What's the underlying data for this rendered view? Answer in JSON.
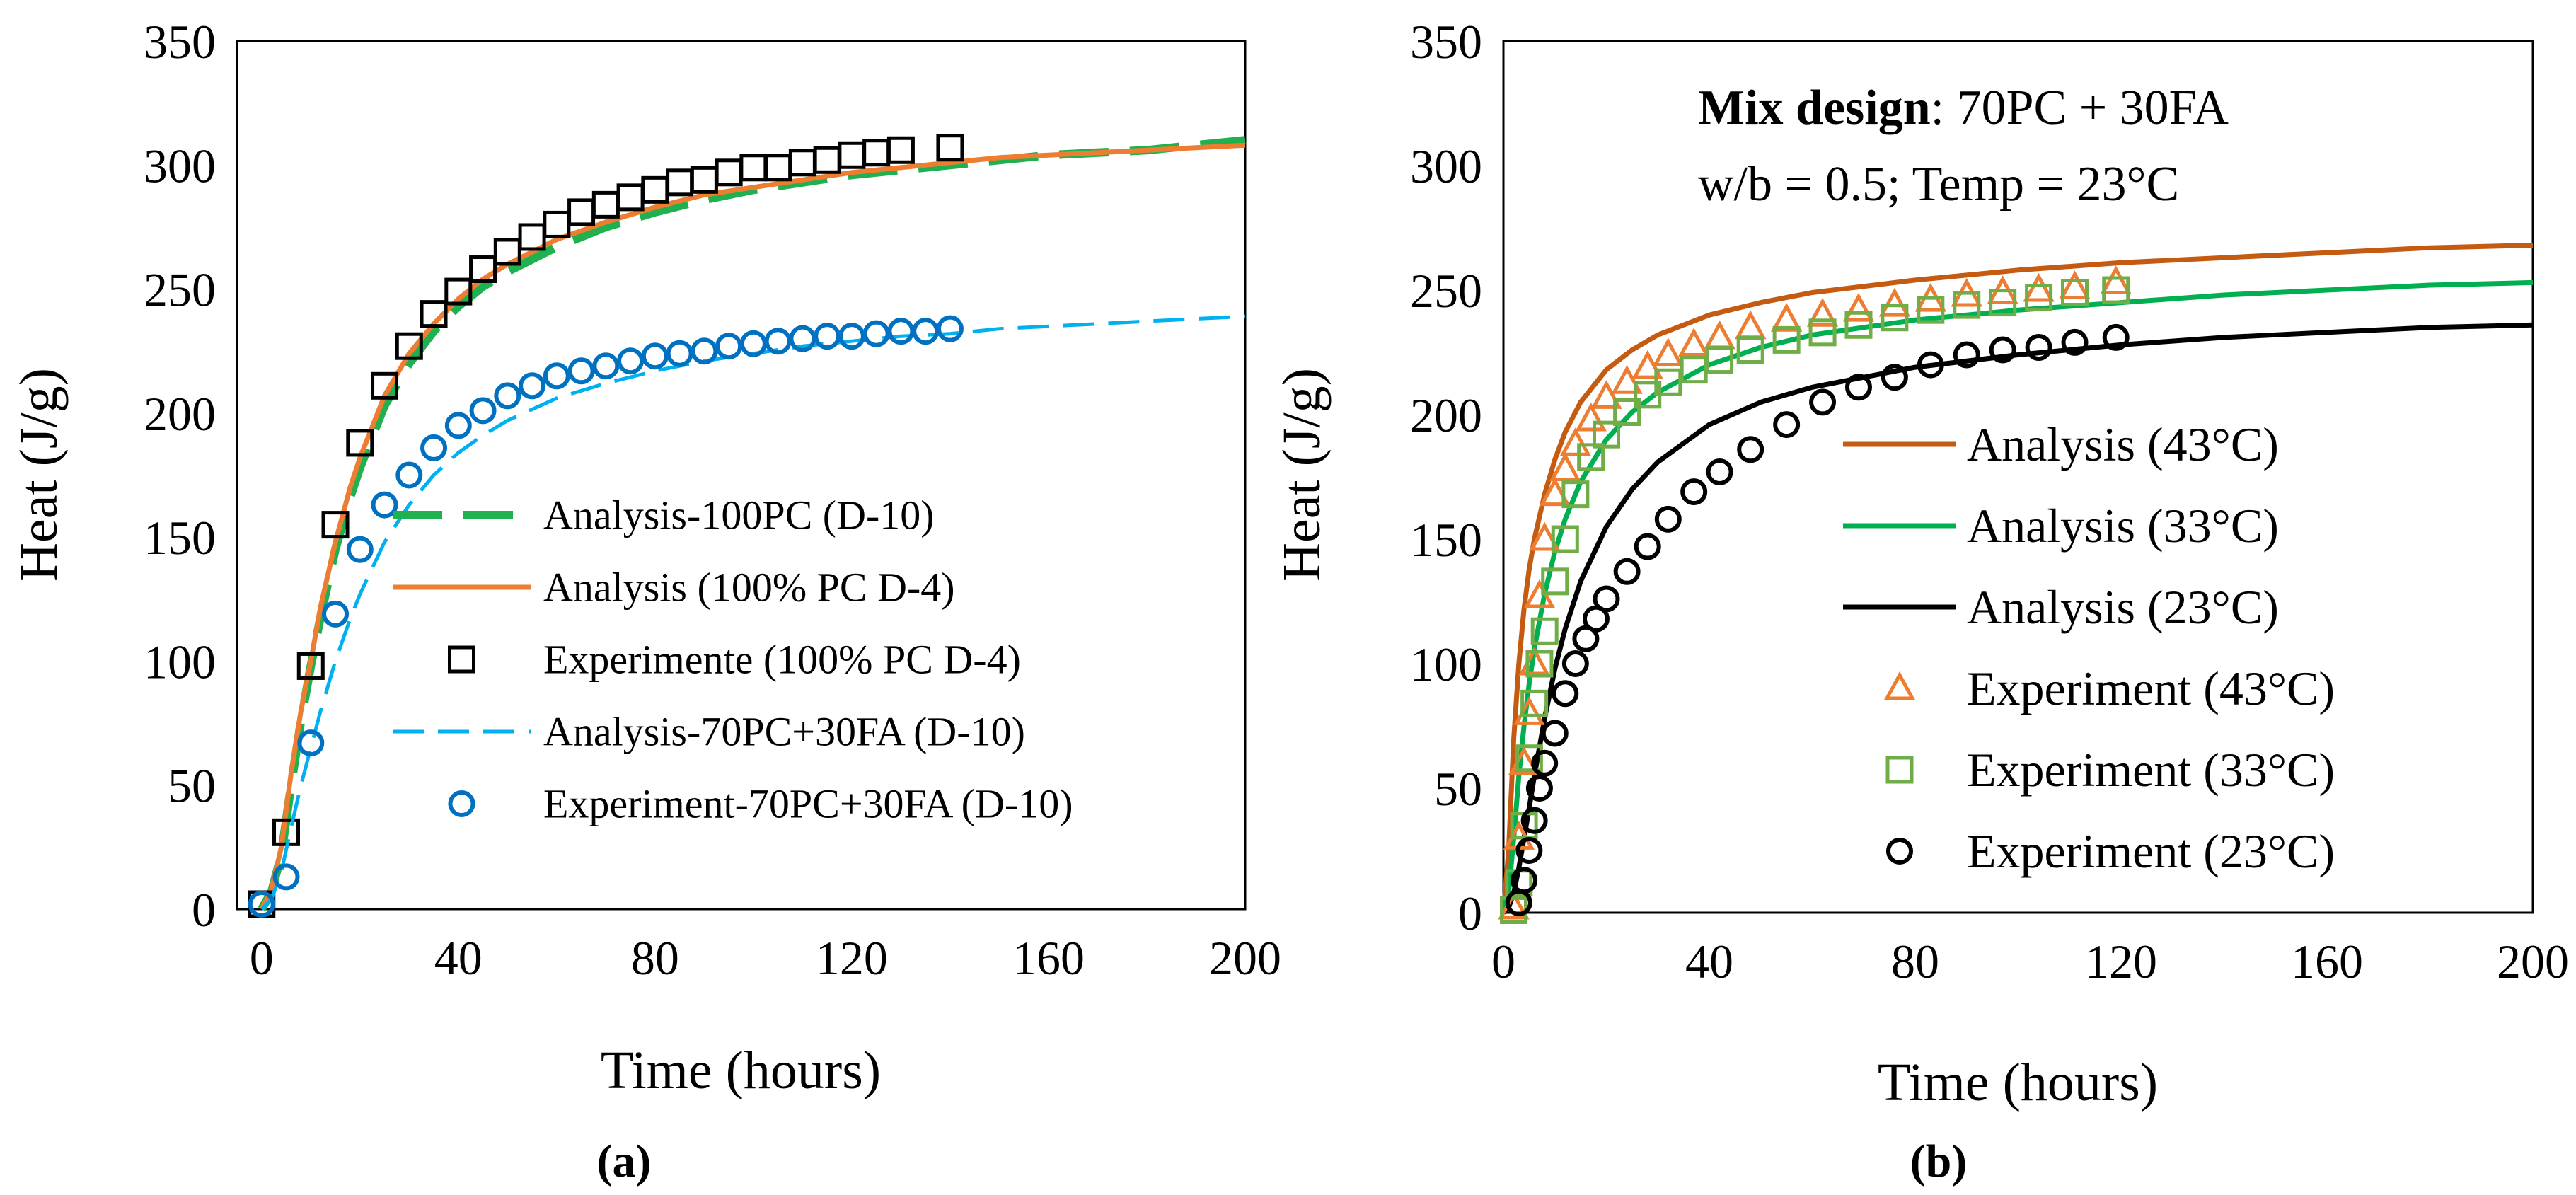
{
  "chart_data": [
    {
      "type": "line",
      "panel_label": "(a)",
      "title": "",
      "xlabel": "Time (hours)",
      "ylabel": "Heat (J/g)",
      "xlim": [
        -5,
        200
      ],
      "ylim": [
        0,
        350
      ],
      "xticks": [
        0,
        40,
        80,
        120,
        160,
        200
      ],
      "yticks": [
        0,
        50,
        100,
        150,
        200,
        250,
        300,
        350
      ],
      "grid": false,
      "legend_position": "lower-right",
      "series": [
        {
          "name": "Analysis-100PC (D-10)",
          "kind": "line",
          "style": "long-dash",
          "color": "#1fb150",
          "x": [
            0,
            2,
            4,
            6,
            8,
            10,
            12,
            15,
            18,
            20,
            25,
            30,
            35,
            40,
            45,
            50,
            60,
            70,
            80,
            90,
            100,
            110,
            120,
            130,
            140,
            150,
            160,
            170,
            180,
            190,
            200
          ],
          "y": [
            0,
            7,
            22,
            50,
            76,
            98,
            118,
            145,
            166,
            178,
            203,
            220,
            233,
            243,
            251,
            257,
            267,
            275,
            281,
            286,
            290,
            293,
            296,
            298,
            300,
            302,
            304,
            305,
            306,
            308,
            310
          ]
        },
        {
          "name": "Analysis (100% PC D-4)",
          "kind": "line",
          "style": "solid",
          "color": "#ed7d31",
          "x": [
            0,
            2,
            4,
            6,
            8,
            10,
            12,
            15,
            18,
            20,
            25,
            30,
            35,
            40,
            45,
            50,
            60,
            70,
            80,
            90,
            100,
            110,
            120,
            130,
            140,
            150,
            160,
            170,
            180,
            190,
            200
          ],
          "y": [
            0,
            8,
            25,
            55,
            80,
            100,
            122,
            148,
            170,
            182,
            207,
            224,
            236,
            246,
            254,
            260,
            270,
            277,
            283,
            288,
            291,
            294,
            297,
            299,
            301,
            303,
            304,
            305,
            306,
            307,
            308
          ]
        },
        {
          "name": "Experimente (100% PC D-4)",
          "kind": "marker",
          "marker": "square",
          "color": "#000000",
          "x": [
            0,
            5,
            10,
            15,
            20,
            25,
            30,
            35,
            40,
            45,
            50,
            55,
            60,
            65,
            70,
            75,
            80,
            85,
            90,
            95,
            100,
            105,
            110,
            115,
            120,
            125,
            130,
            140
          ],
          "y": [
            2,
            31,
            98,
            155,
            188,
            211,
            227,
            240,
            249,
            258,
            265,
            271,
            276,
            281,
            284,
            287,
            290,
            293,
            294,
            297,
            299,
            299,
            301,
            302,
            304,
            305,
            306,
            307
          ]
        },
        {
          "name": "Analysis-70PC+30FA (D-10)",
          "kind": "line",
          "style": "dash",
          "color": "#00b0f0",
          "x": [
            0,
            2,
            4,
            6,
            8,
            10,
            12,
            15,
            18,
            20,
            25,
            30,
            35,
            40,
            45,
            50,
            60,
            70,
            80,
            90,
            100,
            110,
            120,
            130,
            140,
            150,
            160,
            170,
            180,
            190,
            200
          ],
          "y": [
            0,
            4,
            15,
            33,
            50,
            65,
            80,
            100,
            117,
            127,
            148,
            163,
            175,
            184,
            191,
            197,
            206,
            212,
            217,
            221,
            224,
            227,
            229,
            231,
            232,
            234,
            235,
            236,
            237,
            238,
            239
          ]
        },
        {
          "name": "Experiment-70PC+30FA (D-10)",
          "kind": "marker",
          "marker": "circle",
          "color": "#0070c0",
          "x": [
            0,
            5,
            10,
            15,
            20,
            25,
            30,
            35,
            40,
            45,
            50,
            55,
            60,
            65,
            70,
            75,
            80,
            85,
            90,
            95,
            100,
            105,
            110,
            115,
            120,
            125,
            130,
            135,
            140
          ],
          "y": [
            2,
            13,
            67,
            119,
            145,
            163,
            175,
            186,
            195,
            201,
            207,
            211,
            215,
            217,
            219,
            221,
            223,
            224,
            225,
            227,
            228,
            229,
            230,
            231,
            231,
            232,
            233,
            233,
            234
          ]
        }
      ]
    },
    {
      "type": "line",
      "panel_label": "(b)",
      "title": "",
      "xlabel": "Time (hours)",
      "ylabel": "Heat (J/g)",
      "xlim": [
        0,
        200
      ],
      "ylim": [
        0,
        350
      ],
      "xticks": [
        0,
        40,
        80,
        120,
        160,
        200
      ],
      "yticks": [
        0,
        50,
        100,
        150,
        200,
        250,
        300,
        350
      ],
      "grid": false,
      "legend_position": "lower-right",
      "annotation": {
        "line1_bold": "Mix design",
        "line1_rest": ": 70PC + 30FA",
        "line2": "w/b = 0.5; Temp = 23°C"
      },
      "series": [
        {
          "name": "Analysis (43°C)",
          "kind": "line",
          "style": "solid",
          "color": "#c55a11",
          "x": [
            0,
            1,
            2,
            3,
            4,
            5,
            6,
            8,
            10,
            12,
            15,
            20,
            25,
            30,
            40,
            50,
            60,
            80,
            100,
            120,
            140,
            160,
            180,
            200
          ],
          "y": [
            0,
            25,
            70,
            100,
            122,
            138,
            150,
            168,
            182,
            193,
            205,
            218,
            226,
            232,
            240,
            245,
            249,
            254,
            258,
            261,
            263,
            265,
            267,
            268
          ]
        },
        {
          "name": "Analysis (33°C)",
          "kind": "line",
          "style": "solid",
          "color": "#00b050",
          "x": [
            0,
            1,
            2,
            3,
            4,
            5,
            6,
            8,
            10,
            12,
            15,
            20,
            25,
            30,
            40,
            50,
            60,
            80,
            100,
            120,
            140,
            160,
            180,
            200
          ],
          "y": [
            0,
            8,
            30,
            55,
            75,
            92,
            106,
            128,
            145,
            158,
            173,
            190,
            201,
            209,
            220,
            227,
            232,
            238,
            242,
            245,
            248,
            250,
            252,
            253
          ]
        },
        {
          "name": "Analysis (23°C)",
          "kind": "line",
          "style": "solid",
          "color": "#000000",
          "x": [
            0,
            1,
            2,
            3,
            4,
            5,
            6,
            8,
            10,
            12,
            15,
            20,
            25,
            30,
            40,
            50,
            60,
            80,
            100,
            120,
            140,
            160,
            180,
            200
          ],
          "y": [
            0,
            2,
            8,
            18,
            30,
            42,
            55,
            78,
            98,
            114,
            133,
            155,
            170,
            181,
            196,
            205,
            211,
            219,
            224,
            228,
            231,
            233,
            235,
            236
          ]
        },
        {
          "name": "Experiment (43°C)",
          "kind": "marker",
          "marker": "triangle",
          "color": "#ed7d31",
          "x": [
            2,
            3,
            4,
            5,
            6,
            7,
            8,
            10,
            12,
            14,
            17,
            20,
            24,
            28,
            32,
            37,
            42,
            48,
            55,
            62,
            69,
            76,
            83,
            90,
            97,
            104,
            111,
            119
          ],
          "y": [
            2,
            30,
            60,
            80,
            100,
            127,
            150,
            168,
            178,
            188,
            198,
            207,
            213,
            219,
            224,
            228,
            231,
            235,
            238,
            240,
            242,
            244,
            246,
            248,
            249,
            250,
            251,
            253
          ]
        },
        {
          "name": "Experiment (33°C)",
          "kind": "marker",
          "marker": "square",
          "color": "#70ad47",
          "x": [
            2,
            3,
            4,
            5,
            6,
            7,
            8,
            10,
            12,
            14,
            17,
            20,
            24,
            28,
            32,
            37,
            42,
            48,
            55,
            62,
            69,
            76,
            83,
            90,
            97,
            104,
            111,
            119
          ],
          "y": [
            1,
            12,
            35,
            62,
            84,
            100,
            113,
            133,
            150,
            168,
            183,
            192,
            201,
            208,
            213,
            218,
            222,
            226,
            230,
            233,
            236,
            239,
            242,
            244,
            245,
            247,
            249,
            250
          ]
        },
        {
          "name": "Experiment (23°C)",
          "kind": "marker",
          "marker": "circle",
          "color": "#000000",
          "x": [
            3,
            4,
            5,
            6,
            7,
            8,
            10,
            12,
            14,
            16,
            18,
            20,
            24,
            28,
            32,
            37,
            42,
            48,
            55,
            62,
            69,
            76,
            83,
            90,
            97,
            104,
            111,
            119
          ],
          "y": [
            4,
            13,
            25,
            37,
            50,
            60,
            72,
            88,
            100,
            110,
            118,
            126,
            137,
            147,
            158,
            169,
            177,
            186,
            196,
            205,
            211,
            215,
            220,
            224,
            226,
            227,
            229,
            231
          ]
        }
      ]
    }
  ]
}
